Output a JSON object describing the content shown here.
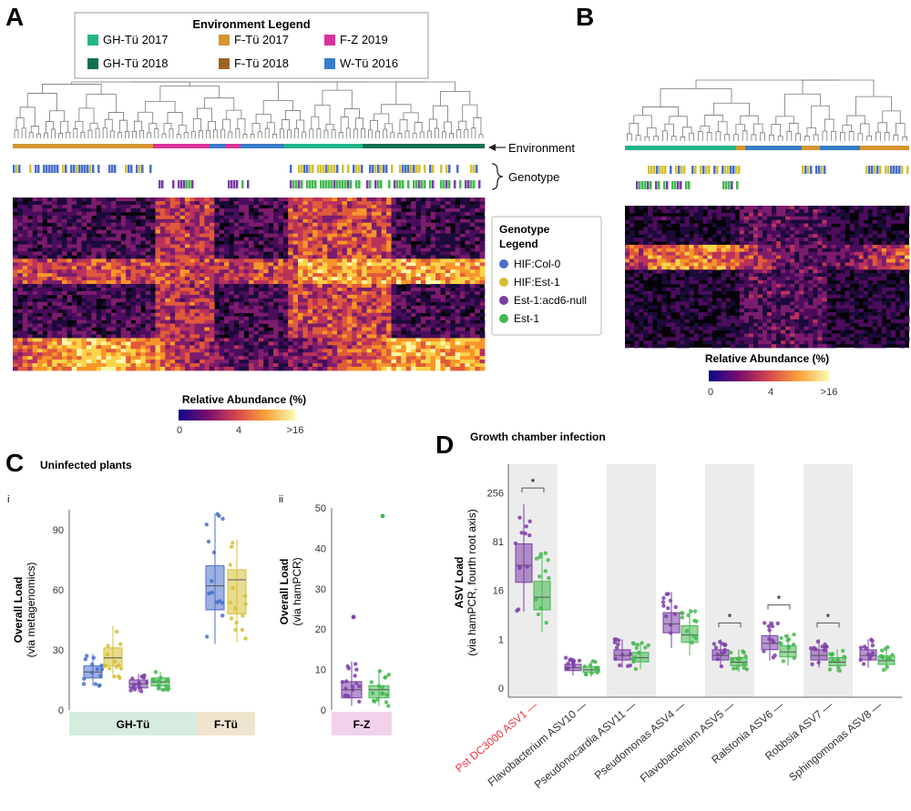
{
  "panels": {
    "A": "A",
    "B": "B",
    "C": "C",
    "D": "D"
  },
  "env_legend": {
    "title": "Environment Legend",
    "items": [
      {
        "label": "GH-Tü 2017",
        "color": "#22b58a"
      },
      {
        "label": "F-Tü 2017",
        "color": "#d4952e"
      },
      {
        "label": "F-Z 2019",
        "color": "#d8339a"
      },
      {
        "label": "GH-Tü 2018",
        "color": "#11704f"
      },
      {
        "label": "F-Tü 2018",
        "color": "#9a6425"
      },
      {
        "label": "W-Tü 2016",
        "color": "#3a7cc8"
      }
    ]
  },
  "geno_legend": {
    "title_line1": "Genotype",
    "title_line2": "Legend",
    "items": [
      {
        "label": "HIF:Col-0",
        "color": "#4a6fc9"
      },
      {
        "label": "HIF:Est-1",
        "color": "#d4c033"
      },
      {
        "label": "Est-1:acd6-null",
        "color": "#7b3ea8"
      },
      {
        "label": "Est-1",
        "color": "#43b84f"
      }
    ]
  },
  "annotations": {
    "environment": "Environment",
    "genotype": "Genotype"
  },
  "colorbar": {
    "title": "Relative Abundance (%)",
    "ticks": [
      "0",
      "4",
      ">16"
    ]
  },
  "panel_c": {
    "title": "Uninfected plants",
    "sub_i": "i",
    "sub_ii": "ii",
    "ylabel_i_line1": "Overall Load",
    "ylabel_i_line2": "(via metagenomics)",
    "ylabel_ii_line1": "Overall Load",
    "ylabel_ii_line2": "(via hamPCR)",
    "yticks_i": [
      "0",
      "30",
      "60",
      "90"
    ],
    "yticks_ii": [
      "0",
      "10",
      "20",
      "30",
      "40",
      "50"
    ],
    "strip_i": [
      {
        "label": "GH-Tü",
        "color": "#d5ecdf"
      },
      {
        "label": "F-Tü",
        "color": "#f1e4cf"
      }
    ],
    "strip_ii": {
      "label": "F-Z",
      "color": "#f1d2ea"
    }
  },
  "panel_d": {
    "title": "Growth chamber infection",
    "ylabel_line1": "ASV Load",
    "ylabel_line2": "(via hamPCR, fourth root axis)",
    "yticks": [
      "0",
      "1",
      "16",
      "81",
      "256"
    ],
    "star": "*",
    "categories": [
      "Pst DC3000 ASV1",
      "Flavobacterium ASV10",
      "Pseudonocardia ASV11",
      "Pseudomonas ASV4",
      "Flavobacterium ASV5",
      "Ralstonia ASV6",
      "Robbsia ASV7",
      "Sphingomonas ASV8"
    ],
    "highlight_color": "#e8353a"
  },
  "chart_data": [
    {
      "type": "box",
      "panel": "C-i",
      "ylabel": "Overall Load (via metagenomics)",
      "ylim": [
        0,
        100
      ],
      "groups": [
        {
          "environment": "GH-Tü",
          "genotype": "HIF:Col-0",
          "median": 19,
          "q1": 16,
          "q3": 22,
          "min": 12,
          "max": 28
        },
        {
          "environment": "GH-Tü",
          "genotype": "HIF:Est-1",
          "median": 26,
          "q1": 22,
          "q3": 31,
          "min": 16,
          "max": 42
        },
        {
          "environment": "GH-Tü",
          "genotype": "Est-1:acd6-null",
          "median": 13,
          "q1": 11,
          "q3": 15,
          "min": 9,
          "max": 18
        },
        {
          "environment": "GH-Tü",
          "genotype": "Est-1",
          "median": 14,
          "q1": 12,
          "q3": 16,
          "min": 10,
          "max": 19
        },
        {
          "environment": "F-Tü",
          "genotype": "HIF:Col-0",
          "median": 62,
          "q1": 50,
          "q3": 72,
          "min": 33,
          "max": 98
        },
        {
          "environment": "F-Tü",
          "genotype": "HIF:Est-1",
          "median": 65,
          "q1": 48,
          "q3": 70,
          "min": 34,
          "max": 85
        }
      ]
    },
    {
      "type": "box",
      "panel": "C-ii",
      "ylabel": "Overall Load (via hamPCR)",
      "ylim": [
        0,
        50
      ],
      "groups": [
        {
          "environment": "F-Z",
          "genotype": "Est-1:acd6-null",
          "median": 5,
          "q1": 3,
          "q3": 7,
          "min": 1,
          "max": 12
        },
        {
          "environment": "F-Z",
          "genotype": "Est-1",
          "median": 5,
          "q1": 3,
          "q3": 6,
          "min": 1,
          "max": 10
        }
      ]
    },
    {
      "type": "box",
      "panel": "D",
      "title": "Growth chamber infection",
      "ylabel": "ASV Load (via hamPCR, fourth root axis)",
      "yscale": "fourth-root",
      "ylim": [
        0,
        400
      ],
      "series": [
        {
          "name": "Est-1:acd6-null",
          "color": "#7b3ea8",
          "medians": [
            40,
            0.03,
            0.2,
            3,
            0.2,
            0.7,
            0.2,
            0.2
          ]
        },
        {
          "name": "Est-1",
          "color": "#43b84f",
          "medians": [
            12,
            0.02,
            0.15,
            1.4,
            0.08,
            0.3,
            0.08,
            0.1
          ]
        }
      ],
      "significant": [
        true,
        false,
        false,
        false,
        true,
        true,
        true,
        false
      ]
    }
  ]
}
